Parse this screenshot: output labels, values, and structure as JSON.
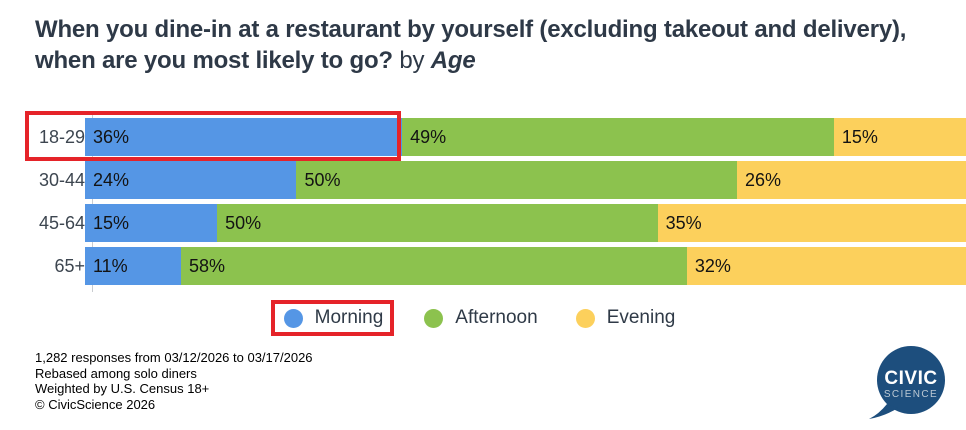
{
  "title": {
    "question": "When you dine-in at a restaurant by yourself (excluding takeout and delivery), when are you most likely to go?",
    "connector": "by",
    "breakdown": "Age"
  },
  "chart_data": {
    "type": "bar",
    "orientation": "horizontal",
    "stacked": true,
    "unit": "%",
    "xlim": [
      0,
      100
    ],
    "grid": false,
    "legend_position": "bottom",
    "value_labels": "inside-start",
    "categories": [
      "18-29",
      "30-44",
      "45-64",
      "65+"
    ],
    "series": [
      {
        "name": "Morning",
        "color": "#5596e5",
        "values": [
          36,
          24,
          15,
          11
        ]
      },
      {
        "name": "Afternoon",
        "color": "#8cc24e",
        "values": [
          49,
          50,
          50,
          58
        ]
      },
      {
        "name": "Evening",
        "color": "#fcd05c",
        "values": [
          15,
          26,
          35,
          32
        ]
      }
    ]
  },
  "annotations": {
    "highlight_color": "#e52329",
    "highlighted_category": "18-29",
    "highlighted_series": "Morning"
  },
  "footnotes": {
    "line1": "1,282 responses from 03/12/2026 to 03/17/2026",
    "line2": "Rebased among solo diners",
    "line3": "Weighted by U.S. Census 18+",
    "line4": "© CivicScience 2026"
  },
  "logo": {
    "line1": "CIVIC",
    "line2": "SCIENCE",
    "color": "#1d4e7d"
  }
}
